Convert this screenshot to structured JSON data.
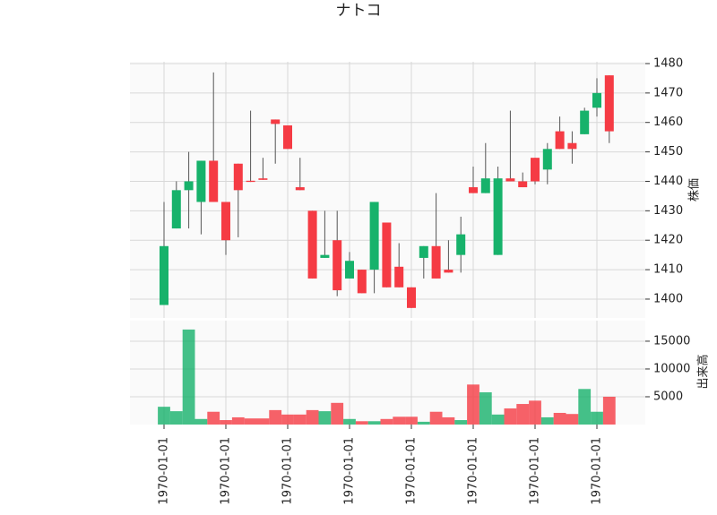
{
  "chart_data": {
    "type": "candlestick",
    "title": "ナトコ",
    "categories": [
      "1970-01-01",
      null,
      null,
      null,
      null,
      "1970-01-01",
      null,
      null,
      null,
      null,
      "1970-01-01",
      null,
      null,
      null,
      null,
      "1970-01-01",
      null,
      null,
      null,
      null,
      "1970-01-01",
      null,
      null,
      null,
      null,
      "1970-01-01",
      null,
      null,
      null,
      null,
      "1970-01-01",
      null,
      null,
      null,
      null,
      "1970-01-01",
      null
    ],
    "open": [
      1398,
      1424,
      1437,
      1433,
      1447,
      1433,
      1446,
      1440.2,
      1441,
      1461,
      1459,
      1438,
      1430,
      1414,
      1420,
      1407,
      1410,
      1410,
      1426,
      1411,
      1404,
      1414,
      1418,
      1410,
      1415,
      1438,
      1436,
      1415,
      1441,
      1440,
      1448,
      1444,
      1457,
      1453,
      1456,
      1465,
      1476
    ],
    "high": [
      1433,
      1440,
      1450,
      1447,
      1477,
      1433,
      1446,
      1464,
      1448,
      1461,
      1459,
      1448,
      1430,
      1430,
      1430,
      1416,
      1410,
      1433,
      1426,
      1419,
      1404,
      1418,
      1436,
      1420,
      1428,
      1445,
      1453,
      1445,
      1464,
      1443,
      1448,
      1453,
      1462,
      1457,
      1465,
      1475,
      1476
    ],
    "low": [
      1398,
      1424,
      1424,
      1422,
      1433,
      1415,
      1421,
      1439.8,
      1440.5,
      1446,
      1451,
      1437,
      1407,
      1414,
      1401,
      1407,
      1402,
      1402,
      1404,
      1404,
      1397,
      1407,
      1407,
      1409,
      1409,
      1436,
      1436,
      1415,
      1440,
      1438,
      1439,
      1439,
      1451,
      1446,
      1456,
      1462,
      1453
    ],
    "close": [
      1418,
      1437,
      1440,
      1447,
      1433,
      1420,
      1437,
      1439.8,
      1440.5,
      1459.5,
      1451,
      1437,
      1407,
      1415,
      1403,
      1413,
      1402,
      1433,
      1404,
      1404,
      1397,
      1418,
      1407,
      1409,
      1422,
      1436,
      1441,
      1441,
      1440,
      1438,
      1440,
      1451,
      1451,
      1451,
      1464,
      1470,
      1457
    ],
    "volume": [
      3200,
      2400,
      17100,
      1000,
      2300,
      800,
      1300,
      1100,
      1100,
      2600,
      1800,
      1800,
      2600,
      2400,
      3900,
      1000,
      600,
      600,
      1000,
      1400,
      1400,
      500,
      2300,
      1300,
      800,
      7200,
      5800,
      1800,
      2900,
      3700,
      4300,
      1300,
      2100,
      1900,
      6400,
      2300,
      5000
    ],
    "up_color": "#17b26b",
    "down_color": "#f53b44",
    "y_label": "株価",
    "y2_label": "出来高",
    "ylim": [
      1393.6,
      1480.6
    ],
    "yticks": [
      1400,
      1410,
      1420,
      1430,
      1440,
      1450,
      1460,
      1470,
      1480
    ],
    "y2lim": [
      0,
      18700
    ],
    "y2ticks": [
      5000,
      10000,
      15000
    ],
    "grid": true
  }
}
